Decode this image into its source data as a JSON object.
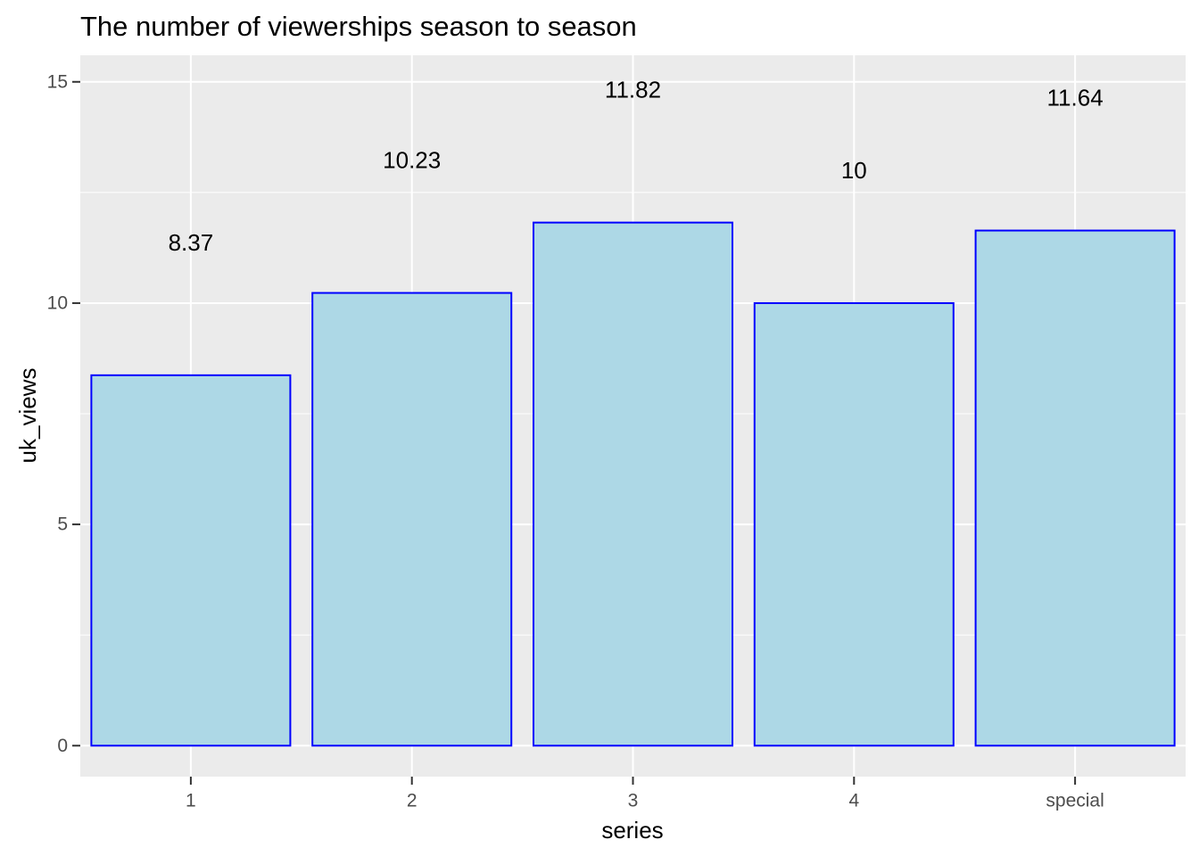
{
  "chart_data": {
    "type": "bar",
    "title": "The number of viewerships season to season",
    "xlabel": "series",
    "ylabel": "uk_views",
    "categories": [
      "1",
      "2",
      "3",
      "4",
      "special"
    ],
    "values": [
      8.37,
      10.23,
      11.82,
      10,
      11.64
    ],
    "data_labels": [
      "8.37",
      "10.23",
      "11.82",
      "10",
      "11.64"
    ],
    "label_offset": 3,
    "ylim": [
      -0.7,
      15.6
    ],
    "y_ticks": [
      0,
      5,
      10,
      15
    ],
    "y_tick_labels": [
      "0",
      "5",
      "10",
      "15"
    ],
    "y_minor_ticks": [
      2.5,
      7.5,
      12.5
    ],
    "grid": true,
    "legend": "none",
    "colors": {
      "bar_fill": "#ADD8E6",
      "bar_stroke": "#0000FF",
      "panel_background": "#EBEBEB",
      "grid": "#FFFFFF",
      "tick_text": "#4D4D4D",
      "tick_mark": "#333333"
    }
  }
}
